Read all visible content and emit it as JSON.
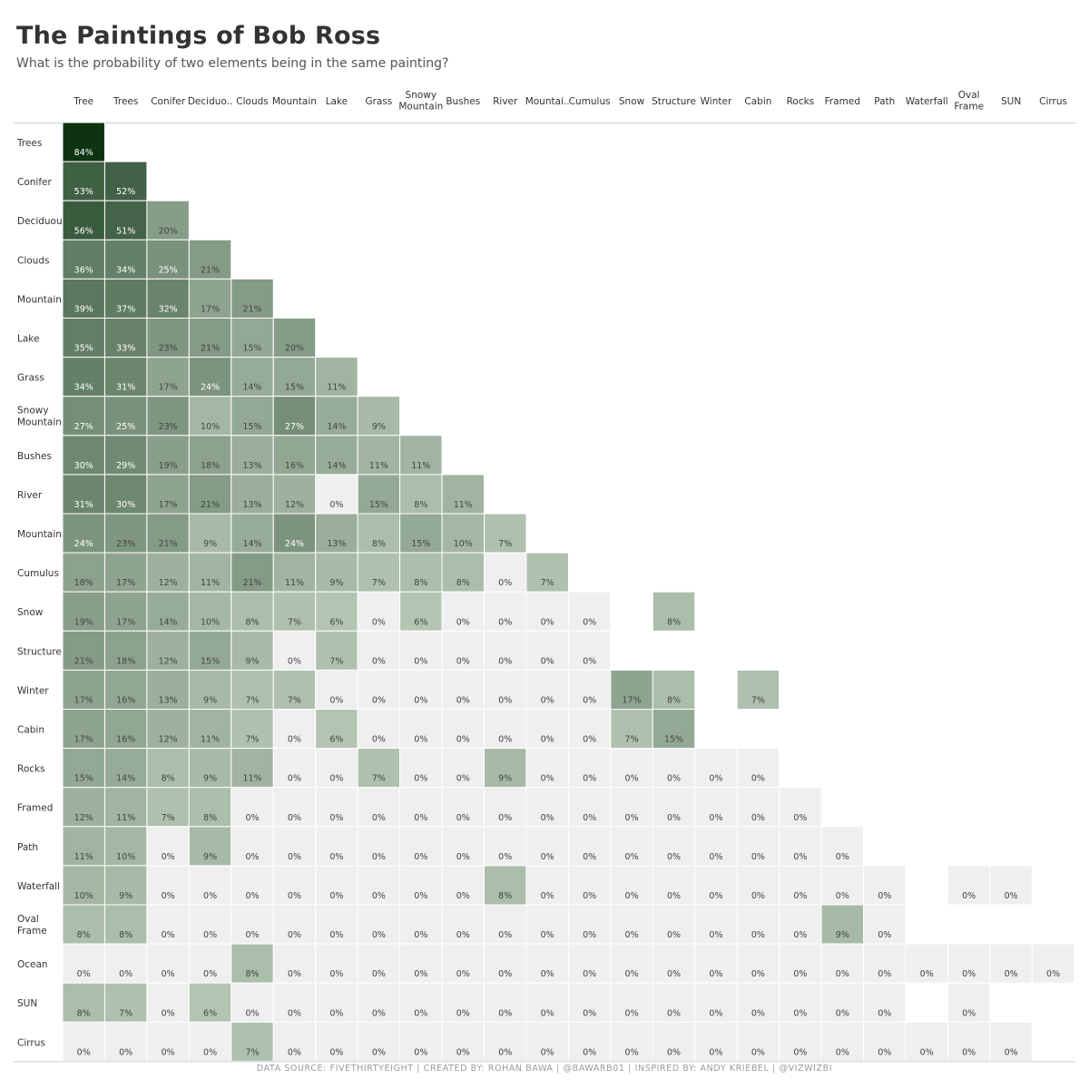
{
  "title": "The Paintings of Bob Ross",
  "subtitle": "What is the probability of two elements being in the same painting?",
  "footer": "DATA SOURCE: FIVETHIRTYEIGHT  |  CREATED BY: ROHAN BAWA  |  @BAWARB01  |  INSPIRED BY: ANDY KRIEBEL  |  @VIZWIZBI",
  "colors": {
    "zero": "#efefef",
    "min": "#dbe7d9",
    "max": "#0d3313",
    "divider": "#cccccc",
    "text_dark": "#444444",
    "text_light": "#ffffff"
  },
  "chart_data": {
    "type": "heatmap",
    "value_unit": "%",
    "columns": [
      "Tree",
      "Trees",
      "Conifer",
      "Deciduo..",
      "Clouds",
      "Mountain",
      "Lake",
      "Grass",
      "Snowy Mountain",
      "Bushes",
      "River",
      "Mountai..",
      "Cumulus",
      "Snow",
      "Structure",
      "Winter",
      "Cabin",
      "Rocks",
      "Framed",
      "Path",
      "Waterfall",
      "Oval Frame",
      "SUN",
      "Cirrus"
    ],
    "rows": [
      {
        "label": "Trees",
        "values": [
          84
        ]
      },
      {
        "label": "Conifer",
        "values": [
          53,
          52
        ]
      },
      {
        "label": "Deciduous",
        "values": [
          56,
          51,
          20
        ]
      },
      {
        "label": "Clouds",
        "values": [
          36,
          34,
          25,
          21
        ]
      },
      {
        "label": "Mountain",
        "values": [
          39,
          37,
          32,
          17,
          21
        ]
      },
      {
        "label": "Lake",
        "values": [
          35,
          33,
          23,
          21,
          15,
          20
        ]
      },
      {
        "label": "Grass",
        "values": [
          34,
          31,
          17,
          24,
          14,
          15,
          11
        ]
      },
      {
        "label": "Snowy Mountain",
        "values": [
          27,
          25,
          23,
          10,
          15,
          27,
          14,
          9
        ]
      },
      {
        "label": "Bushes",
        "values": [
          30,
          29,
          19,
          18,
          13,
          16,
          14,
          11,
          11
        ]
      },
      {
        "label": "River",
        "values": [
          31,
          30,
          17,
          21,
          13,
          12,
          0,
          15,
          8,
          11
        ]
      },
      {
        "label": "Mountains",
        "values": [
          24,
          23,
          21,
          9,
          14,
          24,
          13,
          8,
          15,
          10,
          7
        ]
      },
      {
        "label": "Cumulus",
        "values": [
          18,
          17,
          12,
          11,
          21,
          11,
          9,
          7,
          8,
          8,
          0,
          7
        ]
      },
      {
        "label": "Snow",
        "values": [
          19,
          17,
          14,
          10,
          8,
          7,
          6,
          0,
          6,
          0,
          0,
          0,
          0,
          null,
          8
        ]
      },
      {
        "label": "Structure",
        "values": [
          21,
          18,
          12,
          15,
          9,
          0,
          7,
          0,
          0,
          0,
          0,
          0,
          0
        ]
      },
      {
        "label": "Winter",
        "values": [
          17,
          16,
          13,
          9,
          7,
          7,
          0,
          0,
          0,
          0,
          0,
          0,
          0,
          17,
          8,
          null,
          7
        ]
      },
      {
        "label": "Cabin",
        "values": [
          17,
          16,
          12,
          11,
          7,
          0,
          6,
          0,
          0,
          0,
          0,
          0,
          0,
          7,
          15
        ]
      },
      {
        "label": "Rocks",
        "values": [
          15,
          14,
          8,
          9,
          11,
          0,
          0,
          7,
          0,
          0,
          9,
          0,
          0,
          0,
          0,
          0,
          0
        ]
      },
      {
        "label": "Framed",
        "values": [
          12,
          11,
          7,
          8,
          0,
          0,
          0,
          0,
          0,
          0,
          0,
          0,
          0,
          0,
          0,
          0,
          0,
          0
        ]
      },
      {
        "label": "Path",
        "values": [
          11,
          10,
          0,
          9,
          0,
          0,
          0,
          0,
          0,
          0,
          0,
          0,
          0,
          0,
          0,
          0,
          0,
          0,
          0
        ]
      },
      {
        "label": "Waterfall",
        "values": [
          10,
          9,
          0,
          0,
          0,
          0,
          0,
          0,
          0,
          0,
          8,
          0,
          0,
          0,
          0,
          0,
          0,
          0,
          0,
          0,
          null,
          0,
          0
        ]
      },
      {
        "label": "Oval Frame",
        "values": [
          8,
          8,
          0,
          0,
          0,
          0,
          0,
          0,
          0,
          0,
          0,
          0,
          0,
          0,
          0,
          0,
          0,
          0,
          9,
          0
        ]
      },
      {
        "label": "Ocean",
        "values": [
          0,
          0,
          0,
          0,
          8,
          0,
          0,
          0,
          0,
          0,
          0,
          0,
          0,
          0,
          0,
          0,
          0,
          0,
          0,
          0,
          0,
          0,
          0,
          0
        ]
      },
      {
        "label": "SUN",
        "values": [
          8,
          7,
          0,
          6,
          0,
          0,
          0,
          0,
          0,
          0,
          0,
          0,
          0,
          0,
          0,
          0,
          0,
          0,
          0,
          0,
          null,
          0
        ]
      },
      {
        "label": "Cirrus",
        "values": [
          0,
          0,
          0,
          0,
          7,
          0,
          0,
          0,
          0,
          0,
          0,
          0,
          0,
          0,
          0,
          0,
          0,
          0,
          0,
          0,
          0,
          0,
          0
        ]
      }
    ]
  }
}
